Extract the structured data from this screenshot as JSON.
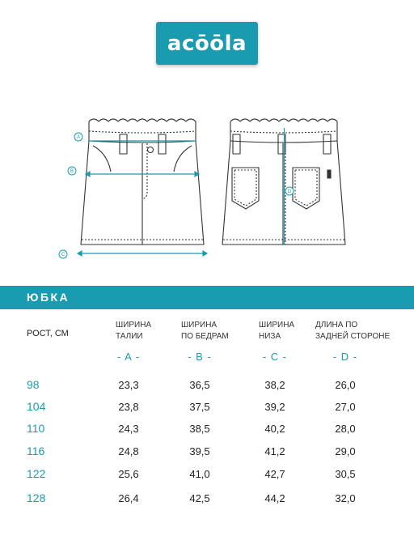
{
  "brand": {
    "logo_text": "acōōla",
    "accent": "#1a9cb0"
  },
  "title": "ЮБКА",
  "drawing": {
    "markers": [
      "A",
      "B",
      "C",
      "D"
    ]
  },
  "table": {
    "height_header": "РОСТ, СМ",
    "columns": [
      {
        "line1": "ШИРИНА",
        "line2": "ТАЛИИ",
        "letter": "- A -"
      },
      {
        "line1": "ШИРИНА",
        "line2": "ПО БЕДРАМ",
        "letter": "- B -"
      },
      {
        "line1": "ШИРИНА",
        "line2": "НИЗА",
        "letter": "- C -"
      },
      {
        "line1": "ДЛИНА ПО",
        "line2": "ЗАДНЕЙ СТОРОНЕ",
        "letter": "- D -"
      }
    ],
    "rows": [
      {
        "size": "98",
        "values": [
          "23,3",
          "36,5",
          "38,2",
          "26,0"
        ]
      },
      {
        "size": "104",
        "values": [
          "23,8",
          "37,5",
          "39,2",
          "27,0"
        ]
      },
      {
        "size": "110",
        "values": [
          "24,3",
          "38,5",
          "40,2",
          "28,0"
        ]
      },
      {
        "size": "116",
        "values": [
          "24,8",
          "39,5",
          "41,2",
          "29,0"
        ]
      },
      {
        "size": "122",
        "values": [
          "25,6",
          "41,0",
          "42,7",
          "30,5"
        ]
      },
      {
        "size": "128",
        "values": [
          "26,4",
          "42,5",
          "44,2",
          "32,0"
        ]
      }
    ]
  }
}
